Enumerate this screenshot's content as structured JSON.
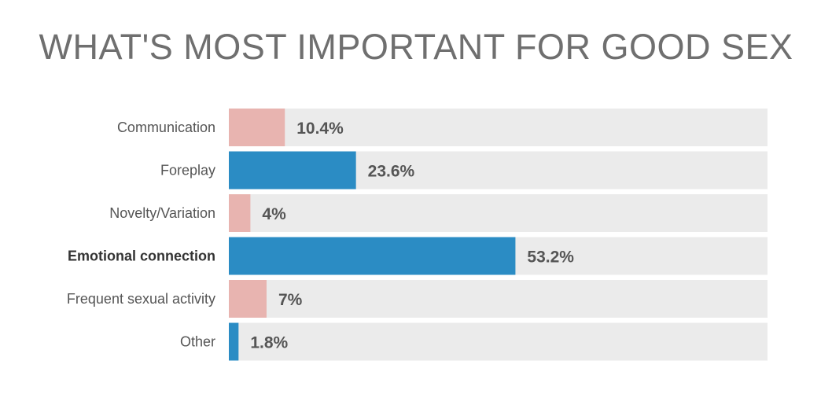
{
  "chart_data": {
    "type": "bar",
    "orientation": "horizontal",
    "title": "WHAT'S MOST IMPORTANT FOR GOOD SEX",
    "categories": [
      "Communication",
      "Foreplay",
      "Novelty/Variation",
      "Emotional connection",
      "Frequent sexual activity",
      "Other"
    ],
    "values": [
      10.4,
      23.6,
      4,
      53.2,
      7,
      1.8
    ],
    "value_labels": [
      "10.4%",
      "23.6%",
      "4%",
      "53.2%",
      "7%",
      "1.8%"
    ],
    "emphasized_category": "Emotional connection",
    "xlim": [
      0,
      100
    ],
    "bar_colors": [
      "#e8b4b0",
      "#2b8cc4",
      "#e8b4b0",
      "#2b8cc4",
      "#e8b4b0",
      "#2b8cc4"
    ],
    "track_color": "#ebebeb",
    "grid": false,
    "legend": "none"
  }
}
